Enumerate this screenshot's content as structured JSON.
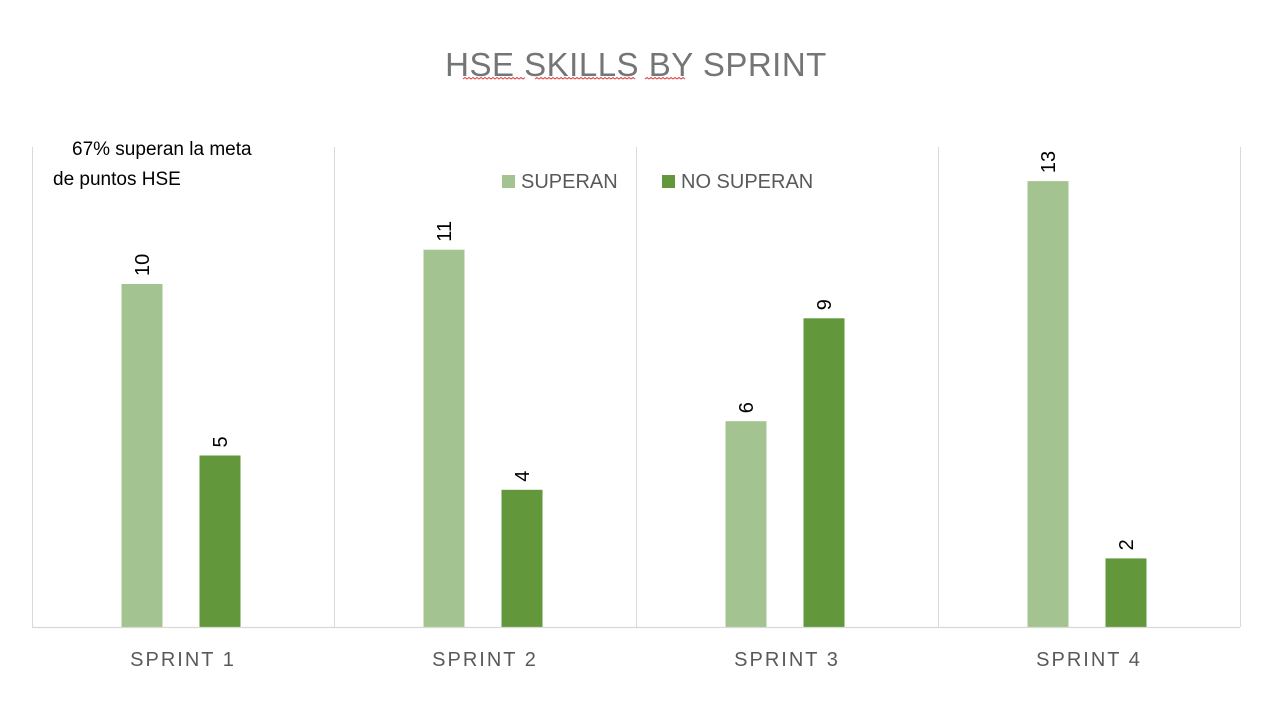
{
  "chart_data": {
    "type": "bar",
    "title": "HSE SKILLS BY SPRINT",
    "categories": [
      "SPRINT 1",
      "SPRINT 2",
      "SPRINT 3",
      "SPRINT 4"
    ],
    "series": [
      {
        "name": "SUPERAN",
        "values": [
          10,
          11,
          6,
          13
        ],
        "color": "#a3c490"
      },
      {
        "name": "NO SUPERAN",
        "values": [
          5,
          4,
          9,
          2
        ],
        "color": "#62983b"
      }
    ],
    "ylim": [
      0,
      14
    ],
    "grid": "vertical category separators",
    "legend_position": "top-center",
    "annotation": {
      "line1": "67%  superan la meta",
      "line2": "de puntos HSE"
    },
    "data_labels": true
  }
}
